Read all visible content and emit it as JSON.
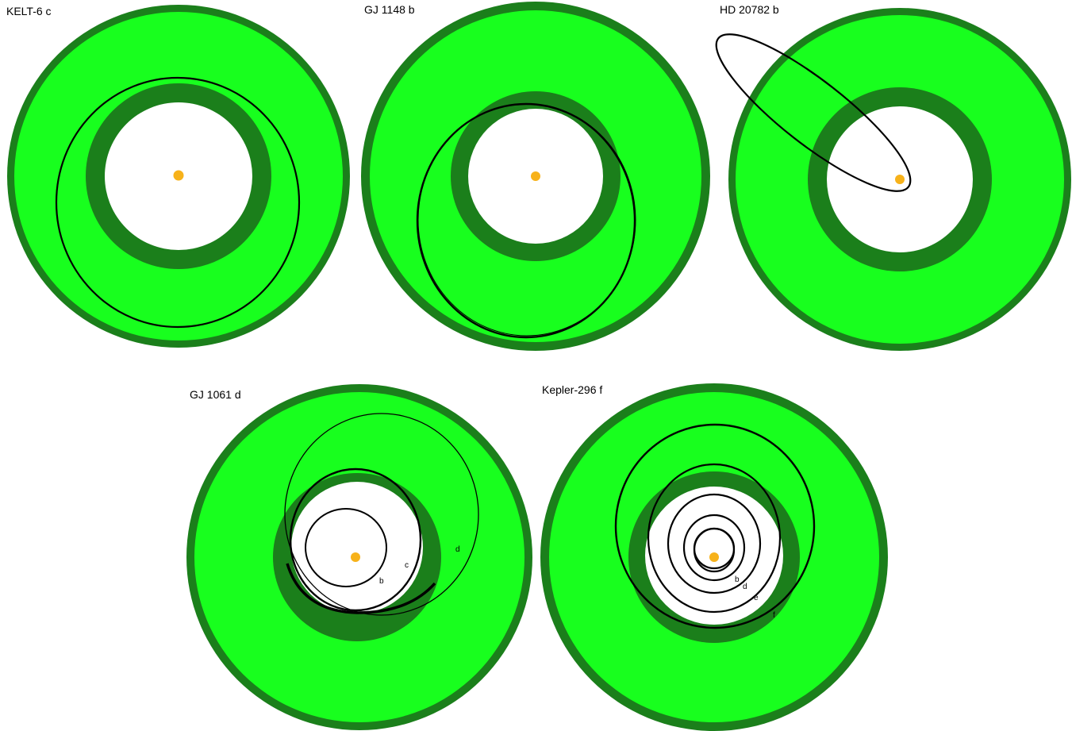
{
  "colors": {
    "habitable_zone_fill": "#18ff1e",
    "habitable_zone_edge": "#1b7f1b",
    "star": "#f7b21a",
    "orbit": "#000000",
    "background": "#ffffff"
  },
  "panels": [
    {
      "title": "KELT-6 c",
      "planet_labels": []
    },
    {
      "title": "GJ 1148 b",
      "planet_labels": []
    },
    {
      "title": "HD 20782 b",
      "planet_labels": []
    },
    {
      "title": "GJ 1061 d",
      "planet_labels": [
        "b",
        "c",
        "d"
      ]
    },
    {
      "title": "Kepler-296 f",
      "planet_labels": [
        "b",
        "d",
        "e",
        "f"
      ]
    }
  ]
}
